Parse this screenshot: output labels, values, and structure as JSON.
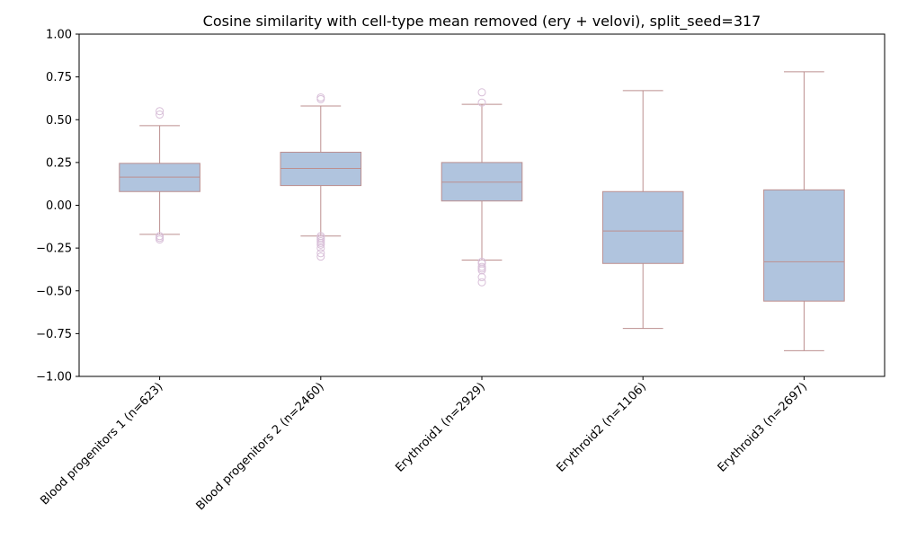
{
  "chart_data": {
    "type": "box",
    "title": "Cosine similarity with cell-type mean removed (ery + velovi), split_seed=317",
    "xlabel": "",
    "ylabel": "",
    "ylim": [
      -1.0,
      1.0
    ],
    "yticks": [
      -1.0,
      -0.75,
      -0.5,
      -0.25,
      0.0,
      0.25,
      0.5,
      0.75,
      1.0
    ],
    "ytick_labels": [
      "−1.00",
      "−0.75",
      "−0.50",
      "−0.25",
      "0.00",
      "0.25",
      "0.50",
      "0.75",
      "1.00"
    ],
    "grid": false,
    "colors": {
      "box_fill": "#b0c4de",
      "box_edge": "#bc8f8f",
      "median": "#bc8f8f",
      "flier": "#d8bfd8"
    },
    "categories": [
      "Blood progenitors 1 (n=623)",
      "Blood progenitors 2 (n=2460)",
      "Erythroid1 (n=2929)",
      "Erythroid2 (n=1106)",
      "Erythroid3 (n=2697)"
    ],
    "boxes": [
      {
        "whisker_low": -0.17,
        "q1": 0.08,
        "median": 0.165,
        "q3": 0.245,
        "whisker_high": 0.465,
        "fliers": [
          0.55,
          0.53,
          -0.18,
          -0.19,
          -0.2
        ]
      },
      {
        "whisker_low": -0.18,
        "q1": 0.115,
        "median": 0.215,
        "q3": 0.31,
        "whisker_high": 0.58,
        "fliers": [
          0.63,
          0.62,
          -0.18,
          -0.19,
          -0.2,
          -0.21,
          -0.22,
          -0.23,
          -0.25,
          -0.28,
          -0.3
        ]
      },
      {
        "whisker_low": -0.32,
        "q1": 0.025,
        "median": 0.135,
        "q3": 0.25,
        "whisker_high": 0.59,
        "fliers": [
          0.66,
          0.6,
          -0.33,
          -0.34,
          -0.36,
          -0.37,
          -0.38,
          -0.42,
          -0.45
        ]
      },
      {
        "whisker_low": -0.72,
        "q1": -0.34,
        "median": -0.15,
        "q3": 0.08,
        "whisker_high": 0.67,
        "fliers": []
      },
      {
        "whisker_low": -0.85,
        "q1": -0.56,
        "median": -0.33,
        "q3": 0.09,
        "whisker_high": 0.78,
        "fliers": []
      }
    ]
  }
}
